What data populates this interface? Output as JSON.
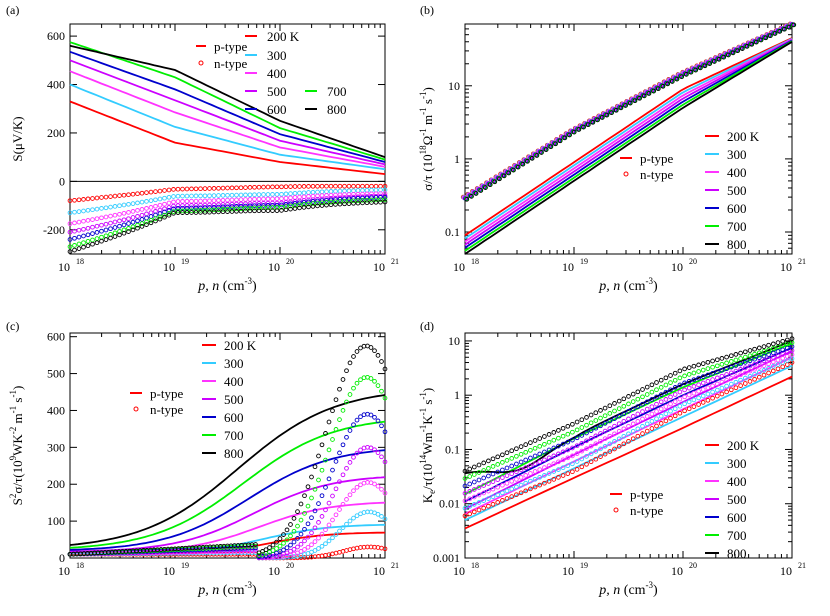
{
  "colors": {
    "200": "#ff0000",
    "300": "#33ccff",
    "400": "#ff33ff",
    "500": "#cc00ff",
    "600": "#0000cc",
    "700": "#00ee00",
    "800": "#000000",
    "ptype": "#ff0000",
    "ntype": "#ff0000"
  },
  "chart_data": [
    {
      "panel": "(a)",
      "type": "line",
      "xscale": "log",
      "yscale": "linear",
      "xlim": [
        1e+18,
        1e+21
      ],
      "ylim": [
        -300,
        650
      ],
      "yticks": [
        -200,
        0,
        200,
        400,
        600
      ],
      "ylabel": "S(μV/K)",
      "xlabel_main": "p, n",
      "xlabel_unit": "(cm",
      "xlabel_exp": "-3",
      "xlabel_close": ")",
      "legend": {
        "ptype": "p-type",
        "ntype": "n-type",
        "temps": [
          "200 K",
          "300",
          "400",
          "500",
          "600",
          "700",
          "800"
        ]
      },
      "x": [
        1e+18,
        1e+19,
        1e+20,
        1e+21
      ],
      "series_p": [
        {
          "T": "200",
          "values": [
            330,
            160,
            80,
            30
          ]
        },
        {
          "T": "300",
          "values": [
            400,
            225,
            110,
            50
          ]
        },
        {
          "T": "400",
          "values": [
            455,
            285,
            140,
            60
          ]
        },
        {
          "T": "500",
          "values": [
            500,
            335,
            168,
            70
          ]
        },
        {
          "T": "600",
          "values": [
            535,
            380,
            195,
            80
          ]
        },
        {
          "T": "700",
          "values": [
            575,
            430,
            220,
            90
          ]
        },
        {
          "T": "800",
          "values": [
            560,
            460,
            250,
            100
          ]
        }
      ],
      "series_n": [
        {
          "T": "200",
          "values": [
            -80,
            -30,
            -25,
            -20
          ]
        },
        {
          "T": "300",
          "values": [
            -130,
            -55,
            -60,
            -35
          ]
        },
        {
          "T": "400",
          "values": [
            -175,
            -75,
            -80,
            -50
          ]
        },
        {
          "T": "500",
          "values": [
            -210,
            -90,
            -100,
            -60
          ]
        },
        {
          "T": "600",
          "values": [
            -240,
            -100,
            -110,
            -65
          ]
        },
        {
          "T": "700",
          "values": [
            -270,
            -110,
            -120,
            -75
          ]
        },
        {
          "T": "800",
          "values": [
            -290,
            -115,
            -135,
            -85
          ]
        }
      ]
    },
    {
      "panel": "(b)",
      "type": "line",
      "xscale": "log",
      "yscale": "log",
      "xlim": [
        1e+18,
        1e+21
      ],
      "ylim": [
        0.05,
        70
      ],
      "yticks": [
        0.1,
        1,
        10
      ],
      "ylabel": "σ/τ (10",
      "ylabel_exp": "18",
      "ylabel_rest": "Ω",
      "ylabel_exp2": "-1",
      "ylabel_unit": "m",
      "ylabel_exp3": "-1",
      "ylabel_unit2": "s",
      "ylabel_exp4": "-1",
      "ylabel_close": ")",
      "xlabel_main": "p, n",
      "xlabel_unit": "(cm",
      "xlabel_exp": "-3",
      "xlabel_close": ")",
      "legend": {
        "ptype": "p-type",
        "ntype": "n-type",
        "temps": [
          "200 K",
          "300",
          "400",
          "500",
          "600",
          "700",
          "800"
        ]
      },
      "x": [
        1e+18,
        1e+19,
        1e+20,
        1e+21
      ],
      "series_p": [
        {
          "T": "200",
          "values": [
            0.09,
            0.9,
            9,
            45
          ]
        },
        {
          "T": "800",
          "values": [
            0.05,
            0.5,
            5,
            40
          ]
        }
      ],
      "series_n": [
        {
          "T": "200",
          "values": [
            0.3,
            2.5,
            15,
            70
          ]
        },
        {
          "T": "800",
          "values": [
            0.28,
            2.4,
            14,
            68
          ]
        }
      ]
    },
    {
      "panel": "(c)",
      "type": "line",
      "xscale": "log",
      "yscale": "linear",
      "xlim": [
        1e+18,
        1e+21
      ],
      "ylim": [
        0,
        610
      ],
      "yticks": [
        0,
        100,
        200,
        300,
        400,
        500,
        600
      ],
      "ylabel": "S",
      "ylabel_exp": "2",
      "ylabel_rest": "σ/τ(10",
      "ylabel_exp2": "9",
      "ylabel_unit": "WK",
      "ylabel_exp3": "-2",
      "ylabel_unit2": "m",
      "ylabel_exp4": "-1",
      "ylabel_unit3": "s",
      "ylabel_exp5": "-1",
      "ylabel_close": ")",
      "xlabel_main": "p, n",
      "xlabel_unit": "(cm",
      "xlabel_exp": "-3",
      "xlabel_close": ")",
      "legend": {
        "ptype": "p-type",
        "ntype": "n-type",
        "temps": [
          "200 K",
          "300",
          "400",
          "500",
          "600",
          "700",
          "800"
        ]
      },
      "series_p_plateau": [
        60,
        80,
        140,
        210,
        285,
        365,
        440
      ],
      "series_n_peak": [
        30,
        125,
        205,
        300,
        390,
        490,
        575
      ]
    },
    {
      "panel": "(d)",
      "type": "line",
      "xscale": "log",
      "yscale": "log",
      "xlim": [
        1e+18,
        1e+21
      ],
      "ylim": [
        0.001,
        14
      ],
      "yticks": [
        0.001,
        0.01,
        0.1,
        1,
        10
      ],
      "ylabel": "K",
      "ylabel_sub": "e",
      "ylabel_rest": "/τ(10",
      "ylabel_exp": "14",
      "ylabel_unit": "Wm",
      "ylabel_exp2": "-1",
      "ylabel_unit2": "K",
      "ylabel_exp3": "-1",
      "ylabel_unit3": "s",
      "ylabel_exp4": "-1",
      "ylabel_close": ")",
      "xlabel_main": "p, n",
      "xlabel_unit": "(cm",
      "xlabel_exp": "-3",
      "xlabel_close": ")",
      "legend": {
        "ptype": "p-type",
        "ntype": "n-type",
        "temps": [
          "200 K",
          "300",
          "400",
          "500",
          "600",
          "700",
          "800"
        ]
      },
      "x": [
        1e+18,
        1e+19,
        1e+20,
        1e+21
      ],
      "series_p": [
        {
          "T": "200",
          "values": [
            0.0035,
            0.03,
            0.25,
            2.2
          ]
        },
        {
          "T": "300",
          "values": [
            0.005,
            0.045,
            0.4,
            3.5
          ]
        },
        {
          "T": "400",
          "values": [
            0.0065,
            0.06,
            0.55,
            5
          ]
        },
        {
          "T": "500",
          "values": [
            0.008,
            0.08,
            0.75,
            6.5
          ]
        },
        {
          "T": "600",
          "values": [
            0.011,
            0.11,
            1.0,
            7.5
          ]
        },
        {
          "T": "700",
          "values": [
            0.015,
            0.16,
            1.4,
            9
          ]
        },
        {
          "T": "800",
          "values": [
            0.04,
            0.18,
            1.6,
            10
          ]
        }
      ],
      "series_n": [
        {
          "T": "200",
          "values": [
            0.006,
            0.04,
            0.5,
            4
          ]
        },
        {
          "T": "800",
          "values": [
            0.04,
            0.3,
            3,
            11
          ]
        }
      ]
    }
  ]
}
